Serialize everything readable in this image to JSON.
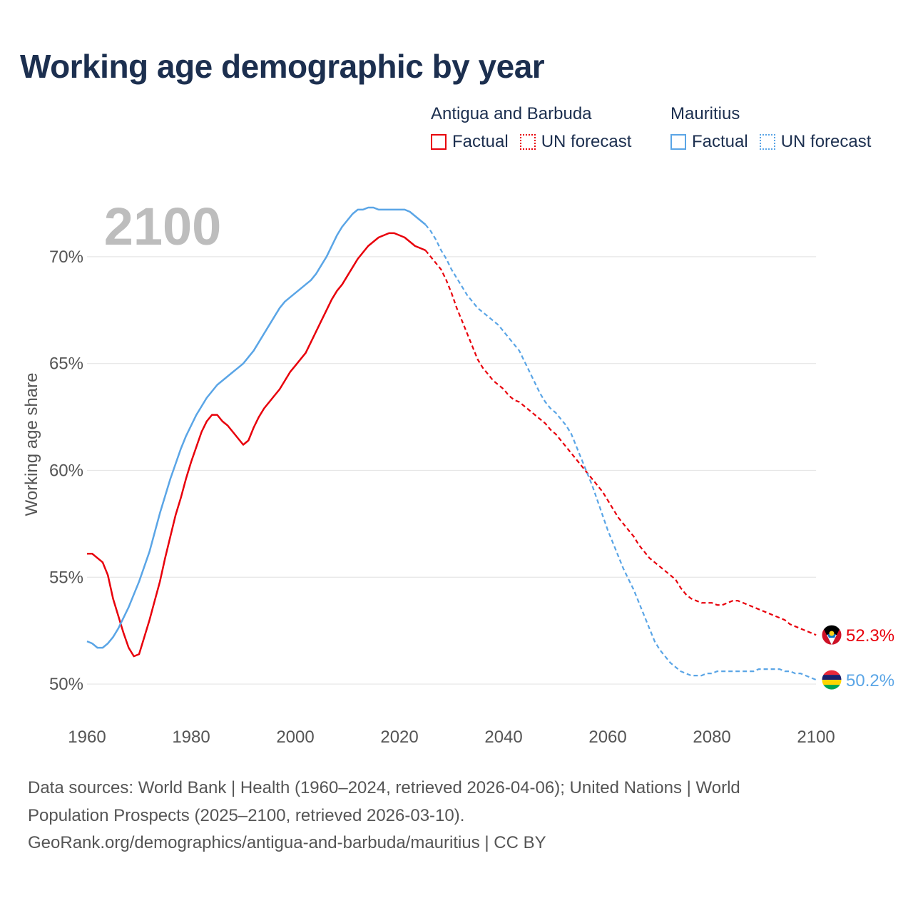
{
  "title": "Working age demographic by year",
  "legend": {
    "groups": [
      {
        "name": "Antigua and Barbuda",
        "factual": "Factual",
        "forecast": "UN forecast",
        "color": "#e8000b"
      },
      {
        "name": "Mauritius",
        "factual": "Factual",
        "forecast": "UN forecast",
        "color": "#5aa5e6"
      }
    ]
  },
  "year_label": "2100",
  "sources": {
    "line1": "Data sources: World Bank | Health (1960–2024, retrieved 2026-04-06); United Nations | World",
    "line2": "Population Prospects (2025–2100, retrieved 2026-03-10).",
    "line3": "GeoRank.org/demographics/antigua-and-barbuda/mauritius | CC BY"
  },
  "chart_data": {
    "type": "line",
    "title": "Working age demographic by year",
    "xlabel": "",
    "ylabel": "Working age share",
    "xlim": [
      1960,
      2103
    ],
    "ylim": [
      48.3,
      73.5
    ],
    "x_ticks": [
      "1960",
      "1980",
      "2000",
      "2020",
      "2040",
      "2060",
      "2080",
      "2100"
    ],
    "y_ticks": [
      "50%",
      "55%",
      "60%",
      "65%",
      "70%"
    ],
    "y_tick_values": [
      50,
      55,
      60,
      65,
      70
    ],
    "factual_range": [
      1960,
      2024
    ],
    "forecast_range": [
      2025,
      2100
    ],
    "series": [
      {
        "name": "Antigua and Barbuda",
        "color": "#e8000b",
        "end_label": "52.3%",
        "flag": "antigua-and-barbuda-flag",
        "points": [
          [
            1960,
            56.1
          ],
          [
            1961,
            56.1
          ],
          [
            1962,
            55.9
          ],
          [
            1963,
            55.7
          ],
          [
            1964,
            55.1
          ],
          [
            1965,
            54.0
          ],
          [
            1966,
            53.2
          ],
          [
            1967,
            52.4
          ],
          [
            1968,
            51.7
          ],
          [
            1969,
            51.3
          ],
          [
            1970,
            51.4
          ],
          [
            1971,
            52.2
          ],
          [
            1972,
            53.0
          ],
          [
            1973,
            53.9
          ],
          [
            1974,
            54.8
          ],
          [
            1975,
            55.9
          ],
          [
            1976,
            56.9
          ],
          [
            1977,
            57.9
          ],
          [
            1978,
            58.7
          ],
          [
            1979,
            59.6
          ],
          [
            1980,
            60.4
          ],
          [
            1981,
            61.1
          ],
          [
            1982,
            61.8
          ],
          [
            1983,
            62.3
          ],
          [
            1984,
            62.6
          ],
          [
            1985,
            62.6
          ],
          [
            1986,
            62.3
          ],
          [
            1987,
            62.1
          ],
          [
            1988,
            61.8
          ],
          [
            1989,
            61.5
          ],
          [
            1990,
            61.2
          ],
          [
            1991,
            61.4
          ],
          [
            1992,
            62.0
          ],
          [
            1993,
            62.5
          ],
          [
            1994,
            62.9
          ],
          [
            1995,
            63.2
          ],
          [
            1996,
            63.5
          ],
          [
            1997,
            63.8
          ],
          [
            1998,
            64.2
          ],
          [
            1999,
            64.6
          ],
          [
            2000,
            64.9
          ],
          [
            2001,
            65.2
          ],
          [
            2002,
            65.5
          ],
          [
            2003,
            66.0
          ],
          [
            2004,
            66.5
          ],
          [
            2005,
            67.0
          ],
          [
            2006,
            67.5
          ],
          [
            2007,
            68.0
          ],
          [
            2008,
            68.4
          ],
          [
            2009,
            68.7
          ],
          [
            2010,
            69.1
          ],
          [
            2011,
            69.5
          ],
          [
            2012,
            69.9
          ],
          [
            2013,
            70.2
          ],
          [
            2014,
            70.5
          ],
          [
            2015,
            70.7
          ],
          [
            2016,
            70.9
          ],
          [
            2017,
            71.0
          ],
          [
            2018,
            71.1
          ],
          [
            2019,
            71.1
          ],
          [
            2020,
            71.0
          ],
          [
            2021,
            70.9
          ],
          [
            2022,
            70.7
          ],
          [
            2023,
            70.5
          ],
          [
            2024,
            70.4
          ],
          [
            2025,
            70.3
          ],
          [
            2026,
            70.0
          ],
          [
            2027,
            69.7
          ],
          [
            2028,
            69.4
          ],
          [
            2029,
            68.9
          ],
          [
            2030,
            68.3
          ],
          [
            2031,
            67.6
          ],
          [
            2032,
            67.0
          ],
          [
            2033,
            66.4
          ],
          [
            2034,
            65.8
          ],
          [
            2035,
            65.2
          ],
          [
            2036,
            64.8
          ],
          [
            2037,
            64.5
          ],
          [
            2038,
            64.2
          ],
          [
            2039,
            64.0
          ],
          [
            2040,
            63.8
          ],
          [
            2041,
            63.5
          ],
          [
            2042,
            63.3
          ],
          [
            2043,
            63.2
          ],
          [
            2044,
            63.0
          ],
          [
            2045,
            62.8
          ],
          [
            2046,
            62.6
          ],
          [
            2047,
            62.4
          ],
          [
            2048,
            62.2
          ],
          [
            2049,
            61.9
          ],
          [
            2050,
            61.7
          ],
          [
            2051,
            61.4
          ],
          [
            2052,
            61.1
          ],
          [
            2053,
            60.8
          ],
          [
            2054,
            60.5
          ],
          [
            2055,
            60.2
          ],
          [
            2056,
            59.9
          ],
          [
            2057,
            59.6
          ],
          [
            2058,
            59.3
          ],
          [
            2059,
            59.0
          ],
          [
            2060,
            58.6
          ],
          [
            2061,
            58.2
          ],
          [
            2062,
            57.8
          ],
          [
            2063,
            57.5
          ],
          [
            2064,
            57.2
          ],
          [
            2065,
            56.9
          ],
          [
            2066,
            56.5
          ],
          [
            2067,
            56.2
          ],
          [
            2068,
            55.9
          ],
          [
            2069,
            55.7
          ],
          [
            2070,
            55.5
          ],
          [
            2071,
            55.3
          ],
          [
            2072,
            55.1
          ],
          [
            2073,
            54.9
          ],
          [
            2074,
            54.5
          ],
          [
            2075,
            54.2
          ],
          [
            2076,
            54.0
          ],
          [
            2077,
            53.9
          ],
          [
            2078,
            53.8
          ],
          [
            2079,
            53.8
          ],
          [
            2080,
            53.8
          ],
          [
            2081,
            53.7
          ],
          [
            2082,
            53.7
          ],
          [
            2083,
            53.8
          ],
          [
            2084,
            53.9
          ],
          [
            2085,
            53.9
          ],
          [
            2086,
            53.8
          ],
          [
            2087,
            53.7
          ],
          [
            2088,
            53.6
          ],
          [
            2089,
            53.5
          ],
          [
            2090,
            53.4
          ],
          [
            2091,
            53.3
          ],
          [
            2092,
            53.2
          ],
          [
            2093,
            53.1
          ],
          [
            2094,
            53.0
          ],
          [
            2095,
            52.8
          ],
          [
            2096,
            52.7
          ],
          [
            2097,
            52.6
          ],
          [
            2098,
            52.5
          ],
          [
            2099,
            52.4
          ],
          [
            2100,
            52.3
          ]
        ]
      },
      {
        "name": "Mauritius",
        "color": "#5aa5e6",
        "end_label": "50.2%",
        "flag": "mauritius-flag",
        "points": [
          [
            1960,
            52.0
          ],
          [
            1961,
            51.9
          ],
          [
            1962,
            51.7
          ],
          [
            1963,
            51.7
          ],
          [
            1964,
            51.9
          ],
          [
            1965,
            52.2
          ],
          [
            1966,
            52.6
          ],
          [
            1967,
            53.1
          ],
          [
            1968,
            53.6
          ],
          [
            1969,
            54.2
          ],
          [
            1970,
            54.8
          ],
          [
            1971,
            55.5
          ],
          [
            1972,
            56.2
          ],
          [
            1973,
            57.1
          ],
          [
            1974,
            58.0
          ],
          [
            1975,
            58.8
          ],
          [
            1976,
            59.6
          ],
          [
            1977,
            60.3
          ],
          [
            1978,
            61.0
          ],
          [
            1979,
            61.6
          ],
          [
            1980,
            62.1
          ],
          [
            1981,
            62.6
          ],
          [
            1982,
            63.0
          ],
          [
            1983,
            63.4
          ],
          [
            1984,
            63.7
          ],
          [
            1985,
            64.0
          ],
          [
            1986,
            64.2
          ],
          [
            1987,
            64.4
          ],
          [
            1988,
            64.6
          ],
          [
            1989,
            64.8
          ],
          [
            1990,
            65.0
          ],
          [
            1991,
            65.3
          ],
          [
            1992,
            65.6
          ],
          [
            1993,
            66.0
          ],
          [
            1994,
            66.4
          ],
          [
            1995,
            66.8
          ],
          [
            1996,
            67.2
          ],
          [
            1997,
            67.6
          ],
          [
            1998,
            67.9
          ],
          [
            1999,
            68.1
          ],
          [
            2000,
            68.3
          ],
          [
            2001,
            68.5
          ],
          [
            2002,
            68.7
          ],
          [
            2003,
            68.9
          ],
          [
            2004,
            69.2
          ],
          [
            2005,
            69.6
          ],
          [
            2006,
            70.0
          ],
          [
            2007,
            70.5
          ],
          [
            2008,
            71.0
          ],
          [
            2009,
            71.4
          ],
          [
            2010,
            71.7
          ],
          [
            2011,
            72.0
          ],
          [
            2012,
            72.2
          ],
          [
            2013,
            72.2
          ],
          [
            2014,
            72.3
          ],
          [
            2015,
            72.3
          ],
          [
            2016,
            72.2
          ],
          [
            2017,
            72.2
          ],
          [
            2018,
            72.2
          ],
          [
            2019,
            72.2
          ],
          [
            2020,
            72.2
          ],
          [
            2021,
            72.2
          ],
          [
            2022,
            72.1
          ],
          [
            2023,
            71.9
          ],
          [
            2024,
            71.7
          ],
          [
            2025,
            71.5
          ],
          [
            2026,
            71.2
          ],
          [
            2027,
            70.8
          ],
          [
            2028,
            70.3
          ],
          [
            2029,
            69.9
          ],
          [
            2030,
            69.4
          ],
          [
            2031,
            69.0
          ],
          [
            2032,
            68.6
          ],
          [
            2033,
            68.2
          ],
          [
            2034,
            67.9
          ],
          [
            2035,
            67.6
          ],
          [
            2036,
            67.4
          ],
          [
            2037,
            67.2
          ],
          [
            2038,
            67.0
          ],
          [
            2039,
            66.8
          ],
          [
            2040,
            66.5
          ],
          [
            2041,
            66.2
          ],
          [
            2042,
            65.9
          ],
          [
            2043,
            65.6
          ],
          [
            2044,
            65.1
          ],
          [
            2045,
            64.6
          ],
          [
            2046,
            64.1
          ],
          [
            2047,
            63.6
          ],
          [
            2048,
            63.2
          ],
          [
            2049,
            62.9
          ],
          [
            2050,
            62.7
          ],
          [
            2051,
            62.4
          ],
          [
            2052,
            62.1
          ],
          [
            2053,
            61.7
          ],
          [
            2054,
            61.1
          ],
          [
            2055,
            60.5
          ],
          [
            2056,
            59.9
          ],
          [
            2057,
            59.3
          ],
          [
            2058,
            58.6
          ],
          [
            2059,
            57.9
          ],
          [
            2060,
            57.2
          ],
          [
            2061,
            56.6
          ],
          [
            2062,
            56.0
          ],
          [
            2063,
            55.4
          ],
          [
            2064,
            54.9
          ],
          [
            2065,
            54.4
          ],
          [
            2066,
            53.8
          ],
          [
            2067,
            53.2
          ],
          [
            2068,
            52.6
          ],
          [
            2069,
            52.0
          ],
          [
            2070,
            51.6
          ],
          [
            2071,
            51.3
          ],
          [
            2072,
            51.0
          ],
          [
            2073,
            50.8
          ],
          [
            2074,
            50.6
          ],
          [
            2075,
            50.5
          ],
          [
            2076,
            50.4
          ],
          [
            2077,
            50.4
          ],
          [
            2078,
            50.4
          ],
          [
            2079,
            50.5
          ],
          [
            2080,
            50.5
          ],
          [
            2081,
            50.6
          ],
          [
            2082,
            50.6
          ],
          [
            2083,
            50.6
          ],
          [
            2084,
            50.6
          ],
          [
            2085,
            50.6
          ],
          [
            2086,
            50.6
          ],
          [
            2087,
            50.6
          ],
          [
            2088,
            50.6
          ],
          [
            2089,
            50.7
          ],
          [
            2090,
            50.7
          ],
          [
            2091,
            50.7
          ],
          [
            2092,
            50.7
          ],
          [
            2093,
            50.7
          ],
          [
            2094,
            50.6
          ],
          [
            2095,
            50.6
          ],
          [
            2096,
            50.5
          ],
          [
            2097,
            50.5
          ],
          [
            2098,
            50.4
          ],
          [
            2099,
            50.3
          ],
          [
            2100,
            50.2
          ]
        ]
      }
    ]
  }
}
